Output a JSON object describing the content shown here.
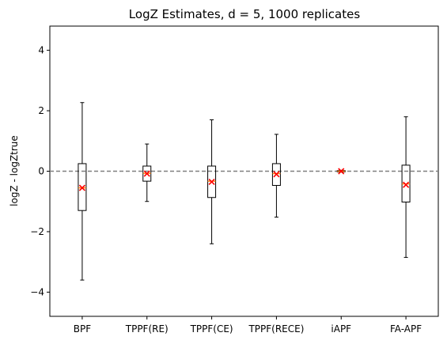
{
  "chart_data": {
    "type": "box",
    "title": "LogZ Estimates, d = 5, 1000 replicates",
    "xlabel": "",
    "ylabel": "logZ - logZtrue",
    "ylim": [
      -4.8,
      4.8
    ],
    "yticks": [
      -4,
      -2,
      0,
      2,
      4
    ],
    "ytick_labels": [
      "−4",
      "−2",
      "0",
      "2",
      "4"
    ],
    "reference_line": {
      "y": 0,
      "style": "dashed",
      "color": "#808080"
    },
    "mean_marker": {
      "symbol": "x",
      "color": "#ff0000"
    },
    "categories": [
      "BPF",
      "TPPF(RE)",
      "TPPF(CE)",
      "TPPF(RECE)",
      "iAPF",
      "FA-APF"
    ],
    "boxes": [
      {
        "label": "BPF",
        "whisker_low": -3.6,
        "q1": -1.3,
        "median": -0.55,
        "q3": 0.25,
        "whisker_high": 2.27,
        "mean": -0.55
      },
      {
        "label": "TPPF(RE)",
        "whisker_low": -1.0,
        "q1": -0.33,
        "median": -0.07,
        "q3": 0.17,
        "whisker_high": 0.9,
        "mean": -0.08
      },
      {
        "label": "TPPF(CE)",
        "whisker_low": -2.4,
        "q1": -0.87,
        "median": -0.33,
        "q3": 0.17,
        "whisker_high": 1.7,
        "mean": -0.35
      },
      {
        "label": "TPPF(RECE)",
        "whisker_low": -1.52,
        "q1": -0.47,
        "median": -0.08,
        "q3": 0.25,
        "whisker_high": 1.22,
        "mean": -0.1
      },
      {
        "label": "iAPF",
        "whisker_low": -0.03,
        "q1": -0.02,
        "median": 0.0,
        "q3": 0.02,
        "whisker_high": 0.03,
        "mean": 0.0
      },
      {
        "label": "FA-APF",
        "whisker_low": -2.85,
        "q1": -1.02,
        "median": -0.42,
        "q3": 0.2,
        "whisker_high": 1.8,
        "mean": -0.45
      }
    ],
    "colors": {
      "box": "#000000",
      "median": "#ff7f0e",
      "reference": "#808080",
      "mean": "#ff0000"
    }
  }
}
